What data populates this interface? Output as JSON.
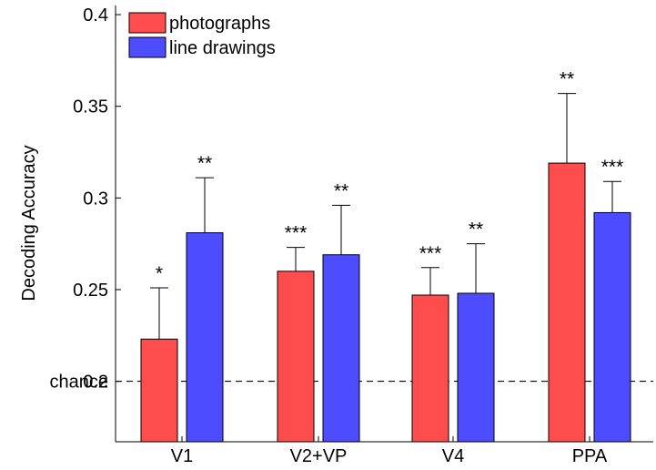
{
  "chart_data": {
    "type": "bar",
    "ylabel": "Decoding Accuracy",
    "xlabel": "",
    "title": "",
    "ylim": [
      0.167,
      0.405
    ],
    "yticks": [
      0.2,
      0.25,
      0.3,
      0.35,
      0.4
    ],
    "ytick_labels": [
      "0.2",
      "0.25",
      "0.3",
      "0.35",
      "0.4"
    ],
    "chance": {
      "value": 0.2,
      "label": "chance",
      "style": "dashed"
    },
    "grid": false,
    "legend": {
      "placement": "top-left"
    },
    "categories": [
      "V1",
      "V2+VP",
      "V4",
      "PPA"
    ],
    "series": [
      {
        "name": "photographs",
        "color": "#ff4d4d",
        "values": [
          0.223,
          0.26,
          0.247,
          0.319
        ],
        "errors": [
          0.028,
          0.013,
          0.015,
          0.038
        ],
        "significance": [
          "*",
          "***",
          "***",
          "**"
        ]
      },
      {
        "name": "line drawings",
        "color": "#4d4dff",
        "values": [
          0.281,
          0.269,
          0.248,
          0.292
        ],
        "errors": [
          0.03,
          0.027,
          0.027,
          0.017
        ],
        "significance": [
          "**",
          "**",
          "**",
          "***"
        ]
      }
    ]
  }
}
